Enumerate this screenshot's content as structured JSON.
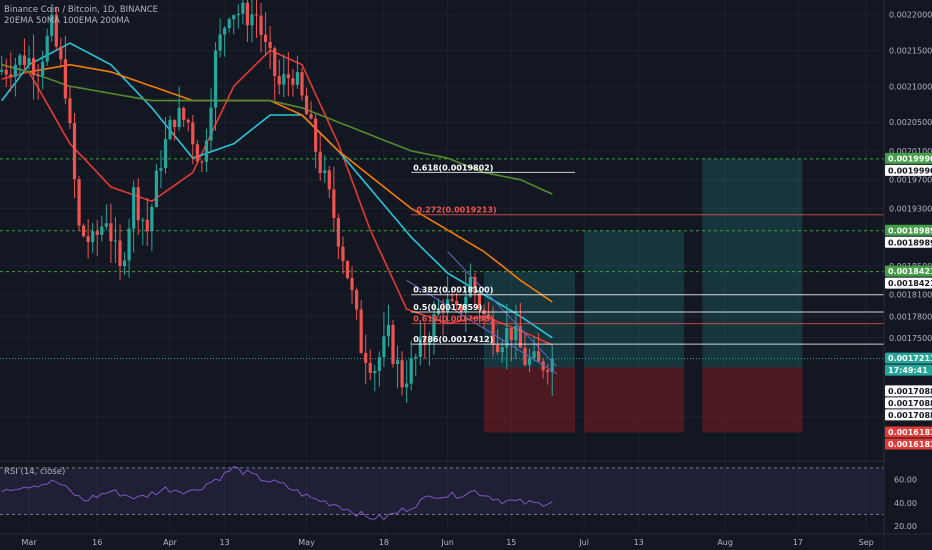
{
  "legend": {
    "symbol": "Binance Coin / Bitcoin, 1D, BINANCE",
    "indicators": "20EMA 50MA 100EMA 200MA",
    "rsi": "RSI (14, close)"
  },
  "price_axis": [
    {
      "label": "0.0022000",
      "v": 0.0022
    },
    {
      "label": "0.0021500",
      "v": 0.00215
    },
    {
      "label": "0.0021000",
      "v": 0.0021
    },
    {
      "label": "0.0020500",
      "v": 0.00205
    },
    {
      "label": "0.0020100",
      "v": 0.00201
    },
    {
      "label": "0.0019700",
      "v": 0.00197
    },
    {
      "label": "0.0019300",
      "v": 0.00193
    },
    {
      "label": "0.0018500",
      "v": 0.00185
    },
    {
      "label": "0.0018100",
      "v": 0.00181
    },
    {
      "label": "0.0017800",
      "v": 0.00178
    },
    {
      "label": "0.0017500",
      "v": 0.00175
    },
    {
      "label": "0.0016400",
      "v": 0.00164
    }
  ],
  "rsi_axis": [
    {
      "label": "60.00",
      "v": 60
    },
    {
      "label": "40.00",
      "v": 40
    },
    {
      "label": "20.00",
      "v": 20
    }
  ],
  "time_axis": [
    {
      "label": "Mar",
      "d": 0
    },
    {
      "label": "16",
      "d": 15
    },
    {
      "label": "Apr",
      "d": 31
    },
    {
      "label": "13",
      "d": 43
    },
    {
      "label": "May",
      "d": 61
    },
    {
      "label": "18",
      "d": 78
    },
    {
      "label": "Jun",
      "d": 92
    },
    {
      "label": "15",
      "d": 106
    },
    {
      "label": "Jul",
      "d": 122
    },
    {
      "label": "13",
      "d": 134
    },
    {
      "label": "Aug",
      "d": 153
    },
    {
      "label": "17",
      "d": 169
    },
    {
      "label": "Sep",
      "d": 184
    }
  ],
  "price_tags": [
    {
      "label": "0.0019990",
      "v": 0.001999,
      "bg": "#43a047",
      "fg": "#ffffff"
    },
    {
      "label": "0.0019990",
      "v": 0.001999,
      "bg": "#ffffff",
      "fg": "#131722",
      "offset": 12
    },
    {
      "label": "0.0018989",
      "v": 0.0018989,
      "bg": "#43a047",
      "fg": "#ffffff"
    },
    {
      "label": "0.0018989",
      "v": 0.0018989,
      "bg": "#ffffff",
      "fg": "#131722",
      "offset": 12
    },
    {
      "label": "0.0018421",
      "v": 0.0018421,
      "bg": "#43a047",
      "fg": "#ffffff"
    },
    {
      "label": "0.0018421",
      "v": 0.0018421,
      "bg": "#ffffff",
      "fg": "#131722",
      "offset": 12
    },
    {
      "label": "0.0017211",
      "v": 0.0017211,
      "bg": "#26a69a",
      "fg": "#ffffff"
    },
    {
      "label": "17:49:41",
      "v": 0.0017211,
      "bg": "#26a69a",
      "fg": "#ffffff",
      "offset": 12
    },
    {
      "label": "0.0017088",
      "v": 0.0017088,
      "bg": "#ffffff",
      "fg": "#131722",
      "offset": 24
    },
    {
      "label": "0.0017088",
      "v": 0.0017088,
      "bg": "#ffffff",
      "fg": "#131722",
      "offset": 36
    },
    {
      "label": "0.0017088",
      "v": 0.0017088,
      "bg": "#ffffff",
      "fg": "#131722",
      "offset": 48
    },
    {
      "label": "0.0016183",
      "v": 0.0016183,
      "bg": "#e53935",
      "fg": "#ffffff"
    },
    {
      "label": "0.0016183",
      "v": 0.0016183,
      "bg": "#e53935",
      "fg": "#ffffff",
      "offset": 12
    }
  ],
  "fib_levels": [
    {
      "label": "0.618(0.0019802)",
      "v": 0.0019802,
      "color": "#ffffff",
      "d0": 84,
      "d1": 120
    },
    {
      "label": "-0.272(0.0019213)",
      "v": 0.0019213,
      "color": "#ef5350",
      "d0": 84,
      "d1": 190
    },
    {
      "label": "0.382(0.0018100)",
      "v": 0.00181,
      "color": "#ffffff",
      "d0": 84,
      "d1": 190
    },
    {
      "label": "0.5(0.0017859)",
      "v": 0.0017859,
      "color": "#ffffff",
      "d0": 84,
      "d1": 190
    },
    {
      "label": "0.618(0.0017698)",
      "v": 0.0017698,
      "color": "#ef5350",
      "d0": 84,
      "d1": 190
    },
    {
      "label": "0.786(0.0017412)",
      "v": 0.0017412,
      "color": "#ffffff",
      "d0": 84,
      "d1": 190
    }
  ],
  "colors": {
    "bg": "#131722",
    "grid": "#1e222d",
    "up": "#26a69a",
    "down": "#ef5350",
    "ema20": "#e53935",
    "ma50": "#26c6da",
    "ema100": "#f57c00",
    "ma200": "#558b2f",
    "rsi": "#7e57c2",
    "target": "#26a69a",
    "stop": "#b71c1c",
    "green_dash": "#43a047"
  },
  "chart_data": {
    "type": "candlestick",
    "title": "Binance Coin / Bitcoin, 1D, BINANCE",
    "x_dates_note": "",
    "ylim": [
      0.00158,
      0.00222
    ],
    "rsi_lim": [
      15,
      75
    ],
    "anchors": [
      [
        -6,
        0.00212
      ],
      [
        0,
        0.00214
      ],
      [
        3,
        0.00213
      ],
      [
        6,
        0.00218
      ],
      [
        9,
        0.0021
      ],
      [
        12,
        0.0019
      ],
      [
        15,
        0.00188
      ],
      [
        18,
        0.00192
      ],
      [
        21,
        0.00184
      ],
      [
        24,
        0.00195
      ],
      [
        27,
        0.0019
      ],
      [
        30,
        0.002
      ],
      [
        33,
        0.00206
      ],
      [
        36,
        0.00205
      ],
      [
        39,
        0.00199
      ],
      [
        42,
        0.00214
      ],
      [
        45,
        0.00221
      ],
      [
        48,
        0.0022
      ],
      [
        51,
        0.0022
      ],
      [
        53,
        0.00215
      ],
      [
        56,
        0.0021
      ],
      [
        59,
        0.00212
      ],
      [
        62,
        0.00206
      ],
      [
        65,
        0.00199
      ],
      [
        68,
        0.00192
      ],
      [
        71,
        0.00184
      ],
      [
        74,
        0.00174
      ],
      [
        77,
        0.00171
      ],
      [
        80,
        0.00175
      ],
      [
        83,
        0.00169
      ],
      [
        86,
        0.00172
      ],
      [
        89,
        0.00176
      ],
      [
        92,
        0.0018
      ],
      [
        95,
        0.00178
      ],
      [
        98,
        0.00183
      ],
      [
        101,
        0.00178
      ],
      [
        104,
        0.00175
      ],
      [
        107,
        0.00176
      ],
      [
        110,
        0.00172
      ],
      [
        113,
        0.00171
      ],
      [
        115,
        0.00172
      ]
    ],
    "emas": {
      "ema20": [
        [
          -6,
          0.00211
        ],
        [
          0,
          0.00212
        ],
        [
          9,
          0.00202
        ],
        [
          18,
          0.00196
        ],
        [
          27,
          0.00194
        ],
        [
          36,
          0.00198
        ],
        [
          45,
          0.0021
        ],
        [
          53,
          0.00215
        ],
        [
          60,
          0.00213
        ],
        [
          68,
          0.00202
        ],
        [
          75,
          0.0019
        ],
        [
          83,
          0.00179
        ],
        [
          92,
          0.00177
        ],
        [
          100,
          0.00178
        ],
        [
          108,
          0.00176
        ],
        [
          115,
          0.00174
        ]
      ],
      "ma50": [
        [
          -6,
          0.00208
        ],
        [
          0,
          0.00213
        ],
        [
          9,
          0.00216
        ],
        [
          18,
          0.00213
        ],
        [
          27,
          0.00207
        ],
        [
          36,
          0.002
        ],
        [
          45,
          0.00202
        ],
        [
          53,
          0.00206
        ],
        [
          60,
          0.00206
        ],
        [
          68,
          0.00201
        ],
        [
          76,
          0.00195
        ],
        [
          84,
          0.00189
        ],
        [
          92,
          0.00184
        ],
        [
          100,
          0.00181
        ],
        [
          108,
          0.00178
        ],
        [
          115,
          0.00175
        ]
      ],
      "ema100": [
        [
          -6,
          0.00213
        ],
        [
          0,
          0.00212
        ],
        [
          9,
          0.00213
        ],
        [
          18,
          0.00212
        ],
        [
          27,
          0.0021
        ],
        [
          36,
          0.00208
        ],
        [
          45,
          0.00208
        ],
        [
          53,
          0.00208
        ],
        [
          60,
          0.00206
        ],
        [
          68,
          0.00201
        ],
        [
          76,
          0.00197
        ],
        [
          84,
          0.00193
        ],
        [
          92,
          0.0019
        ],
        [
          100,
          0.00187
        ],
        [
          108,
          0.00183
        ],
        [
          115,
          0.0018
        ]
      ],
      "ma200": [
        [
          -6,
          0.00213
        ],
        [
          0,
          0.00212
        ],
        [
          9,
          0.0021
        ],
        [
          18,
          0.00209
        ],
        [
          27,
          0.00208
        ],
        [
          36,
          0.00208
        ],
        [
          45,
          0.00208
        ],
        [
          53,
          0.00208
        ],
        [
          60,
          0.00207
        ],
        [
          68,
          0.00205
        ],
        [
          76,
          0.00203
        ],
        [
          84,
          0.00201
        ],
        [
          92,
          0.002
        ],
        [
          100,
          0.00198
        ],
        [
          108,
          0.00197
        ],
        [
          115,
          0.00195
        ]
      ]
    },
    "rsi": [
      [
        -6,
        52
      ],
      [
        0,
        55
      ],
      [
        6,
        58
      ],
      [
        12,
        42
      ],
      [
        18,
        50
      ],
      [
        24,
        44
      ],
      [
        30,
        52
      ],
      [
        36,
        50
      ],
      [
        42,
        62
      ],
      [
        45,
        70
      ],
      [
        50,
        62
      ],
      [
        56,
        55
      ],
      [
        62,
        44
      ],
      [
        68,
        38
      ],
      [
        74,
        28
      ],
      [
        78,
        27
      ],
      [
        83,
        35
      ],
      [
        89,
        47
      ],
      [
        93,
        46
      ],
      [
        98,
        50
      ],
      [
        104,
        42
      ],
      [
        109,
        40
      ],
      [
        112,
        39
      ],
      [
        115,
        42
      ]
    ],
    "setups": [
      {
        "d0": 100,
        "d1": 120,
        "entry": 0.0017088,
        "target": 0.0018421,
        "stop": 0.0016183
      },
      {
        "d0": 122,
        "d1": 144,
        "entry": 0.0017088,
        "target": 0.0018989,
        "stop": 0.0016183
      },
      {
        "d0": 148,
        "d1": 170,
        "entry": 0.0017088,
        "target": 0.001999,
        "stop": 0.0016183
      }
    ],
    "green_levels": [
      0.001999,
      0.0018989,
      0.0018421
    ],
    "current_price": 0.0017211
  }
}
